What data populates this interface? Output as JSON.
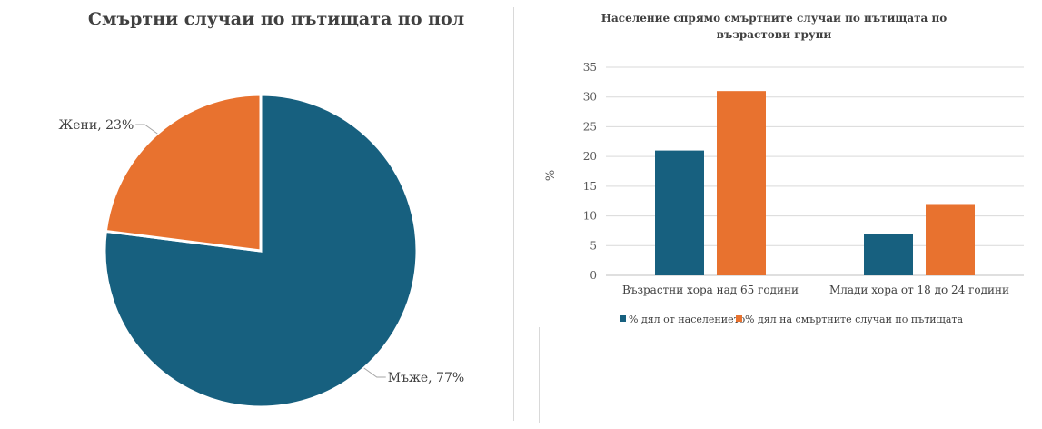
{
  "chart_data": [
    {
      "type": "pie",
      "title": "Смъртни случаи по пътищата по пол",
      "slices": [
        {
          "label": "Мъже",
          "value": 77,
          "data_label": "Мъже, 77%",
          "color": "#17607f"
        },
        {
          "label": "Жени",
          "value": 23,
          "data_label": "Жени, 23%",
          "color": "#e8722f"
        }
      ]
    },
    {
      "type": "bar",
      "title": "Население спрямо смъртните случаи по пътищата по възрастови групи",
      "title_lines": [
        "Население спрямо смъртните случаи по пътищата по",
        "възрастови групи"
      ],
      "ylabel": "%",
      "ylim": [
        0,
        35
      ],
      "yticks": [
        0,
        5,
        10,
        15,
        20,
        25,
        30,
        35
      ],
      "grid": true,
      "legend_position": "bottom",
      "categories": [
        "Възрастни хора над 65 години",
        "Млади хора от 18 до 24 години"
      ],
      "series": [
        {
          "name": "% дял от населението",
          "values": [
            21,
            7
          ],
          "color": "#17607f"
        },
        {
          "name": "% дял на смъртните случаи по пътищата",
          "values": [
            31,
            12
          ],
          "color": "#e8722f"
        }
      ]
    }
  ]
}
